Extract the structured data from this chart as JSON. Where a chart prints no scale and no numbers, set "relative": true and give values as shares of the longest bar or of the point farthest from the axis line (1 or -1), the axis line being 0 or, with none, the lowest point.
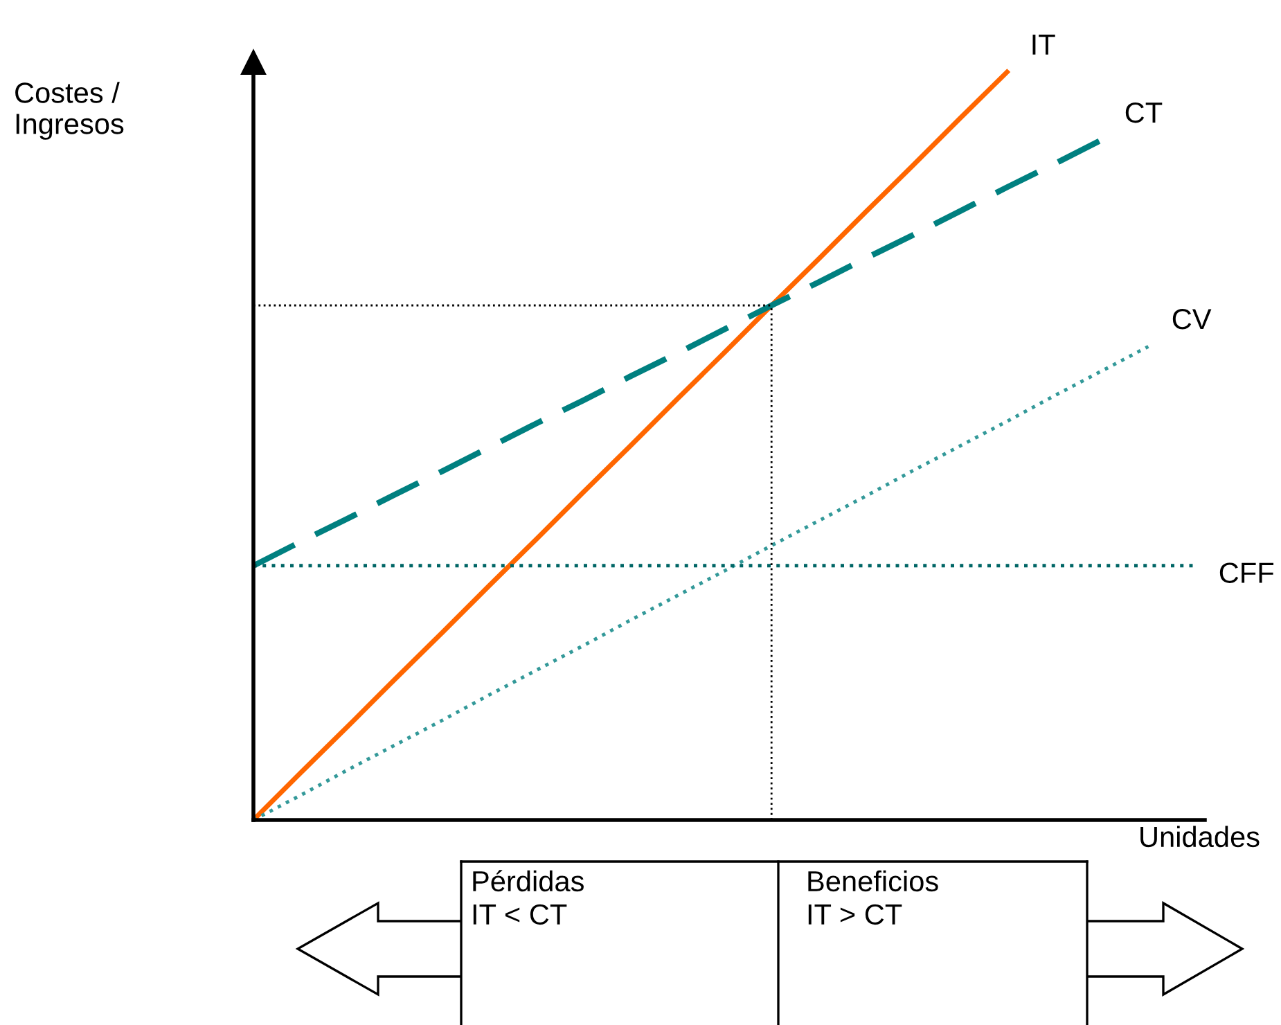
{
  "chart_data": {
    "type": "line",
    "relative": true,
    "xlabel": "Unidades",
    "ylabel": "Costes /\nIngresos",
    "categories": [
      null,
      null,
      null,
      null,
      null,
      null,
      null,
      null,
      null,
      null,
      null,
      null,
      null,
      null,
      null,
      null,
      null,
      null,
      null,
      null,
      null
    ],
    "series": [
      {
        "name": "IT",
        "color": "#ff6600",
        "line_style": "solid",
        "values": [
          0,
          0.063,
          0.125,
          0.188,
          0.25,
          0.313,
          0.375,
          0.438,
          0.5,
          0.563,
          0.625,
          0.688,
          0.75,
          0.813,
          0.875,
          0.938,
          1,
          null,
          null,
          null,
          null
        ]
      },
      {
        "name": "CT",
        "color": "#008080",
        "line_style": "dashed",
        "values": [
          0.34,
          0.372,
          0.403,
          0.435,
          0.466,
          0.498,
          0.53,
          0.561,
          0.593,
          0.624,
          0.656,
          0.688,
          0.719,
          0.751,
          0.782,
          0.814,
          0.846,
          0.877,
          0.909,
          null,
          null
        ]
      },
      {
        "name": "CV",
        "color": "#339999",
        "line_style": "dotted",
        "values": [
          0,
          0.033,
          0.067,
          0.1,
          0.133,
          0.167,
          0.2,
          0.233,
          0.267,
          0.3,
          0.333,
          0.367,
          0.4,
          0.433,
          0.467,
          0.5,
          0.533,
          0.567,
          0.6,
          0.633,
          null
        ]
      },
      {
        "name": "CFF",
        "color": "#006666",
        "line_style": "dotted",
        "values": [
          0.34,
          0.34,
          0.34,
          0.34,
          0.34,
          0.34,
          0.34,
          0.34,
          0.34,
          0.34,
          0.34,
          0.34,
          0.34,
          0.34,
          0.34,
          0.34,
          0.34,
          0.34,
          0.34,
          0.34,
          0.34
        ]
      }
    ],
    "ref_lines": [
      {
        "axis": "y",
        "value": 0.688,
        "color": "#000000",
        "line_style": "dotted"
      }
    ],
    "annotations": [
      "Pérdidas\nIT < CT",
      "Beneficios\nIT > CT"
    ]
  }
}
